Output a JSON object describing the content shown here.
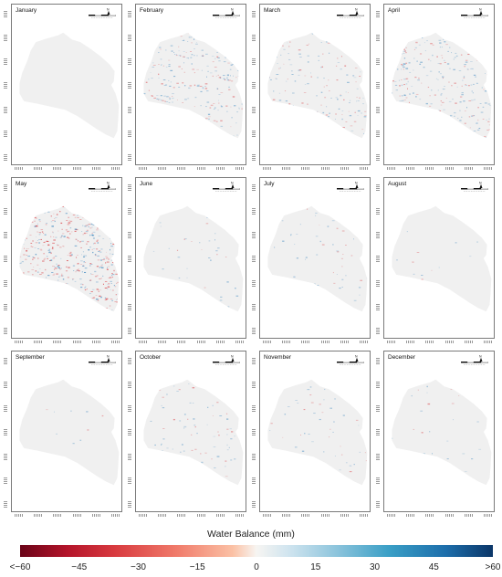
{
  "panels": [
    {
      "month": "January",
      "speckle": 0,
      "red_share": 0.5
    },
    {
      "month": "February",
      "speckle": 0.55,
      "red_share": 0.35
    },
    {
      "month": "March",
      "speckle": 0.35,
      "red_share": 0.4
    },
    {
      "month": "April",
      "speckle": 0.6,
      "red_share": 0.35
    },
    {
      "month": "May",
      "speckle": 1.0,
      "red_share": 0.55
    },
    {
      "month": "June",
      "speckle": 0.08,
      "red_share": 0.3
    },
    {
      "month": "July",
      "speckle": 0.12,
      "red_share": 0.3
    },
    {
      "month": "August",
      "speckle": 0.03,
      "red_share": 0.3
    },
    {
      "month": "September",
      "speckle": 0.03,
      "red_share": 0.4
    },
    {
      "month": "October",
      "speckle": 0.2,
      "red_share": 0.3
    },
    {
      "month": "November",
      "speckle": 0.15,
      "red_share": 0.35
    },
    {
      "month": "December",
      "speckle": 0.06,
      "red_share": 0.3
    }
  ],
  "legend": {
    "title": "Water Balance (mm)",
    "ticks": [
      {
        "label": "<−60",
        "value": -60
      },
      {
        "label": "−45",
        "value": -45
      },
      {
        "label": "−30",
        "value": -30
      },
      {
        "label": "−15",
        "value": -15
      },
      {
        "label": "0",
        "value": 0
      },
      {
        "label": "15",
        "value": 15
      },
      {
        "label": "30",
        "value": 30
      },
      {
        "label": "45",
        "value": 45
      },
      {
        "label": ">60",
        "value": 60
      }
    ],
    "range": [
      -60,
      60
    ]
  },
  "colors": {
    "basin_fill": "#f0f0f0",
    "negative": "#d83a3f",
    "positive": "#3a85bd"
  },
  "map_symbols": {
    "north_arrow_label": "N",
    "scale_icon": "scale-bar-icon"
  }
}
